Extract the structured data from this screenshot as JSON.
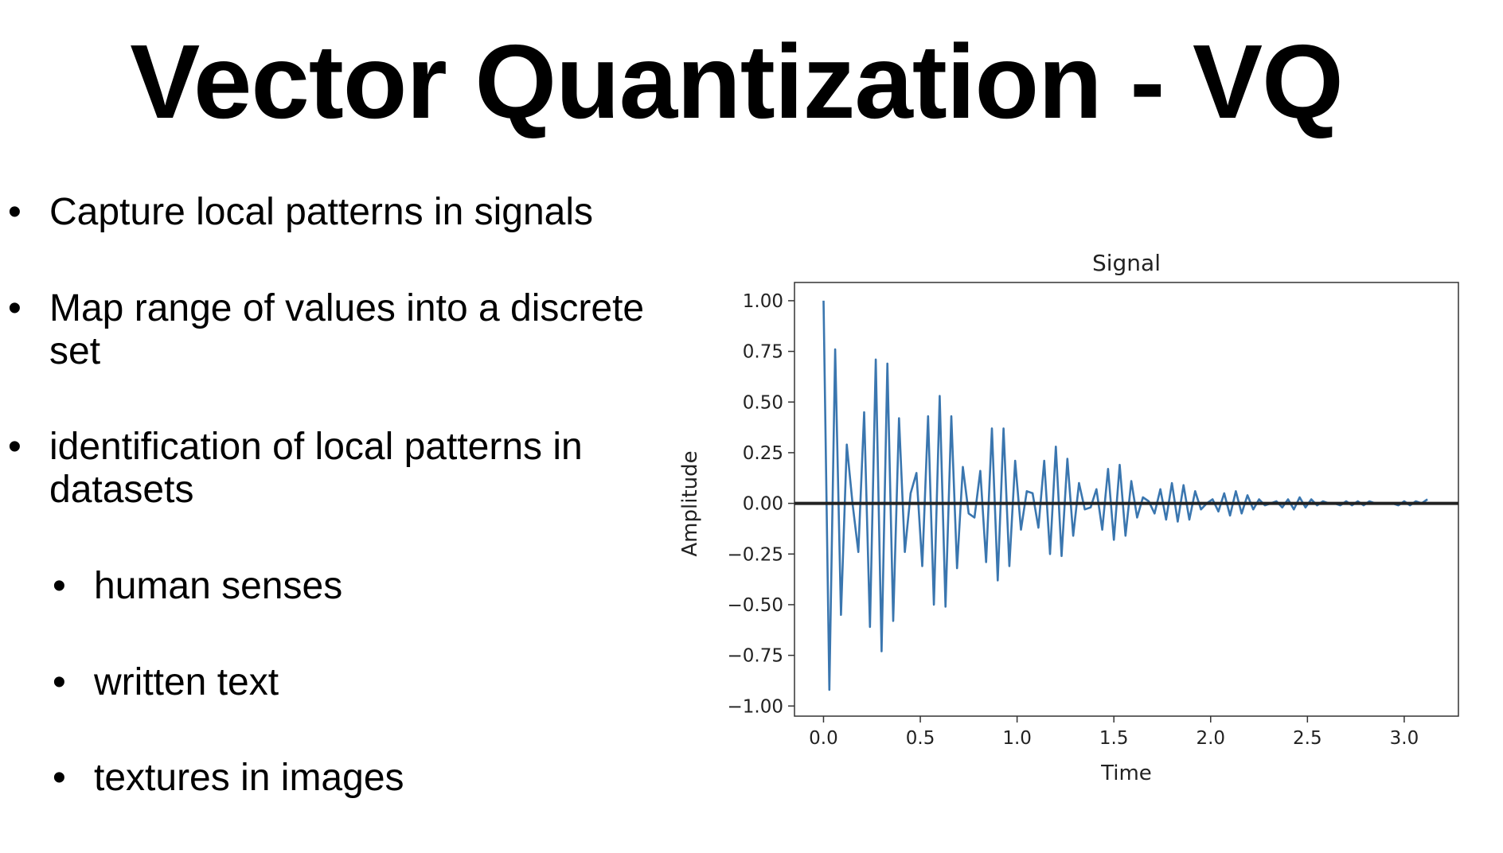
{
  "slide": {
    "title": "Vector Quantization - VQ"
  },
  "bullets": [
    {
      "text": "Capture local patterns in signals",
      "level": 1
    },
    {
      "text": "Map range of values into a discrete set",
      "level": 1
    },
    {
      "text": "identification of local patterns in datasets",
      "level": 1
    },
    {
      "text": "human senses",
      "level": 2
    },
    {
      "text": "written text",
      "level": 2
    },
    {
      "text": "textures in images",
      "level": 2
    }
  ],
  "colors": {
    "series": "#3a76af",
    "zero_line": "#222222",
    "axes": "#333333"
  },
  "chart_data": {
    "type": "line",
    "title": "Signal",
    "xlabel": "Time",
    "ylabel": "Amplitude",
    "xlim": [
      -0.15,
      3.28
    ],
    "ylim": [
      -1.05,
      1.09
    ],
    "xticks": [
      0.0,
      0.5,
      1.0,
      1.5,
      2.0,
      2.5,
      3.0
    ],
    "xtick_labels": [
      "0.0",
      "0.5",
      "1.0",
      "1.5",
      "2.0",
      "2.5",
      "3.0"
    ],
    "yticks": [
      1.0,
      0.75,
      0.5,
      0.25,
      0.0,
      -0.25,
      -0.5,
      -0.75,
      -1.0
    ],
    "ytick_labels": [
      "1.00",
      "0.75",
      "0.50",
      "0.25",
      "0.00",
      "−0.25",
      "−0.50",
      "−0.75",
      "−1.00"
    ],
    "grid": false,
    "horizontal_line": {
      "y": 0.0
    },
    "series": [
      {
        "x": [
          0.0,
          0.03,
          0.06,
          0.09,
          0.12,
          0.15,
          0.18,
          0.21,
          0.24,
          0.27,
          0.3,
          0.33,
          0.36,
          0.39,
          0.42,
          0.45,
          0.48,
          0.51,
          0.54,
          0.57,
          0.6,
          0.63,
          0.66,
          0.69,
          0.72,
          0.75,
          0.78,
          0.81,
          0.84,
          0.87,
          0.9,
          0.93,
          0.96,
          0.99,
          1.02,
          1.05,
          1.08,
          1.11,
          1.14,
          1.17,
          1.2,
          1.23,
          1.26,
          1.29,
          1.32,
          1.35,
          1.38,
          1.41,
          1.44,
          1.47,
          1.5,
          1.53,
          1.56,
          1.59,
          1.62,
          1.65,
          1.68,
          1.71,
          1.74,
          1.77,
          1.8,
          1.83,
          1.86,
          1.89,
          1.92,
          1.95,
          1.98,
          2.01,
          2.04,
          2.07,
          2.1,
          2.13,
          2.16,
          2.19,
          2.22,
          2.25,
          2.28,
          2.31,
          2.34,
          2.37,
          2.4,
          2.43,
          2.46,
          2.49,
          2.52,
          2.55,
          2.58,
          2.61,
          2.64,
          2.67,
          2.7,
          2.73,
          2.76,
          2.79,
          2.82,
          2.85,
          2.88,
          2.91,
          2.94,
          2.97,
          3.0,
          3.03,
          3.06,
          3.09,
          3.12
        ],
        "y": [
          1.0,
          -0.92,
          0.76,
          -0.55,
          0.29,
          0.0,
          -0.24,
          0.45,
          -0.61,
          0.71,
          -0.73,
          0.69,
          -0.58,
          0.42,
          -0.24,
          0.05,
          0.15,
          -0.31,
          0.43,
          -0.5,
          0.53,
          -0.51,
          0.43,
          -0.32,
          0.18,
          -0.05,
          -0.07,
          0.16,
          -0.29,
          0.37,
          -0.38,
          0.37,
          -0.31,
          0.21,
          -0.13,
          0.06,
          0.05,
          -0.12,
          0.21,
          -0.25,
          0.28,
          -0.26,
          0.22,
          -0.16,
          0.1,
          -0.03,
          -0.02,
          0.07,
          -0.13,
          0.17,
          -0.18,
          0.19,
          -0.16,
          0.11,
          -0.07,
          0.03,
          0.01,
          -0.05,
          0.07,
          -0.08,
          0.1,
          -0.09,
          0.09,
          -0.08,
          0.06,
          -0.03,
          0.0,
          0.02,
          -0.04,
          0.05,
          -0.06,
          0.06,
          -0.05,
          0.04,
          -0.03,
          0.02,
          -0.01,
          0.0,
          0.01,
          -0.02,
          0.02,
          -0.03,
          0.03,
          -0.02,
          0.02,
          -0.01,
          0.01,
          0.0,
          0.0,
          -0.01,
          0.01,
          -0.01,
          0.01,
          -0.01,
          0.01,
          0.0,
          0.0,
          0.0,
          0.0,
          -0.01,
          0.01,
          -0.01,
          0.01,
          0.0,
          0.02
        ]
      }
    ]
  }
}
